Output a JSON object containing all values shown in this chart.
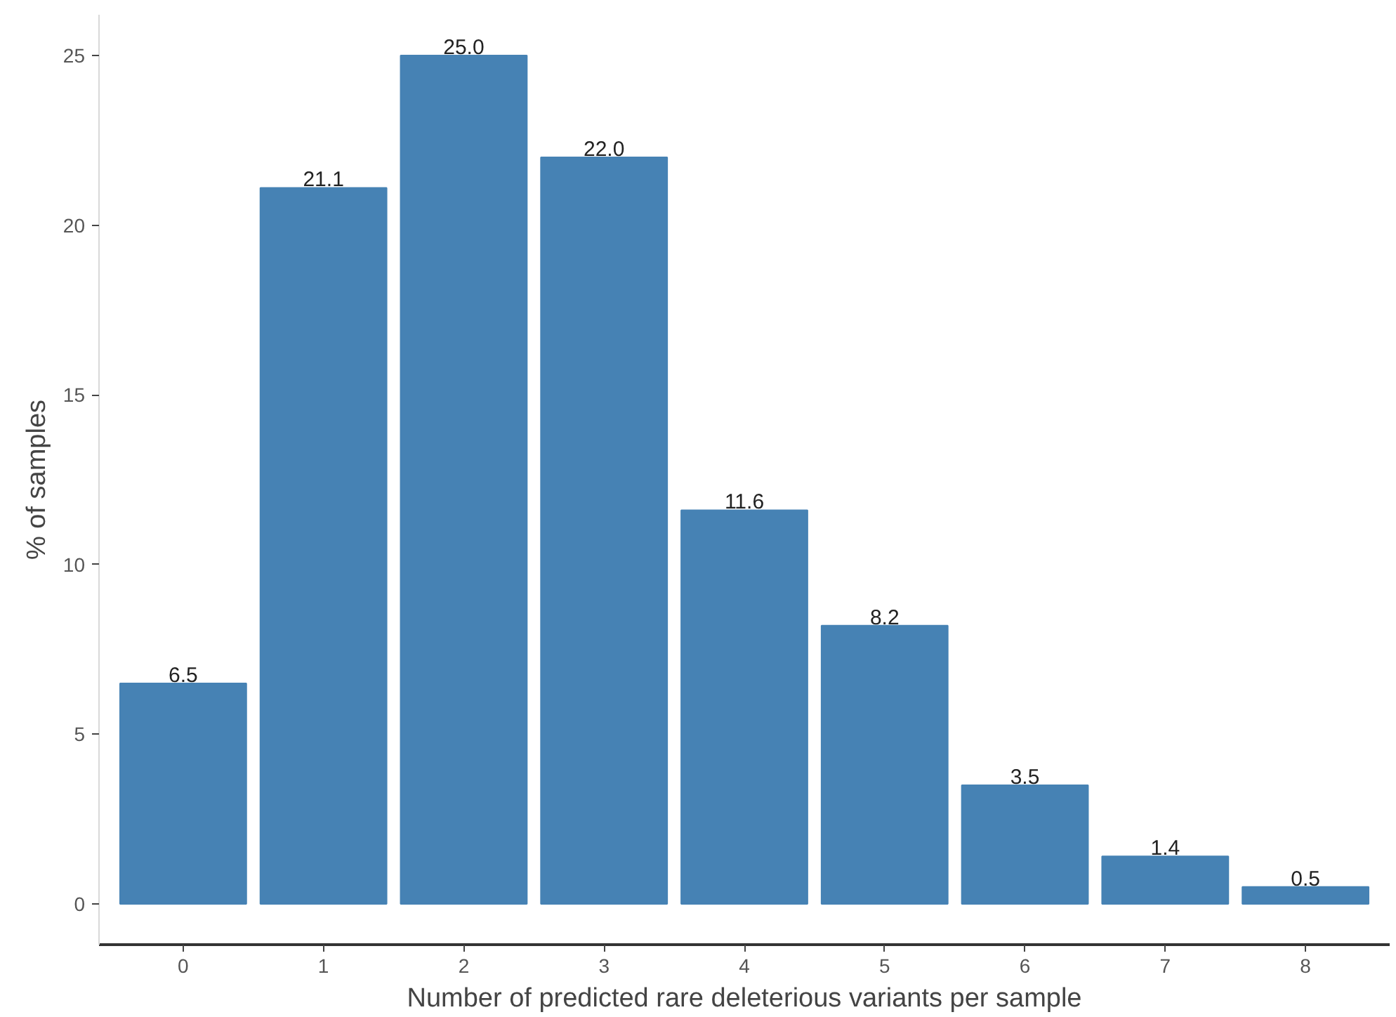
{
  "chart_data": {
    "type": "bar",
    "xlabel": "Number of predicted rare deleterious variants per sample",
    "ylabel": "% of samples",
    "categories": [
      "0",
      "1",
      "2",
      "3",
      "4",
      "5",
      "6",
      "7",
      "8"
    ],
    "values": [
      6.5,
      21.1,
      25.0,
      22.0,
      11.6,
      8.2,
      3.5,
      1.4,
      0.5
    ],
    "value_labels": [
      "6.5",
      "21.1",
      "25.0",
      "22.0",
      "11.6",
      "8.2",
      "3.5",
      "1.4",
      "0.5"
    ],
    "color": "#4682b4",
    "ylim": [
      -1.2,
      26.2
    ],
    "yticks": [
      0,
      5,
      10,
      15,
      20,
      25
    ],
    "grid": false
  }
}
